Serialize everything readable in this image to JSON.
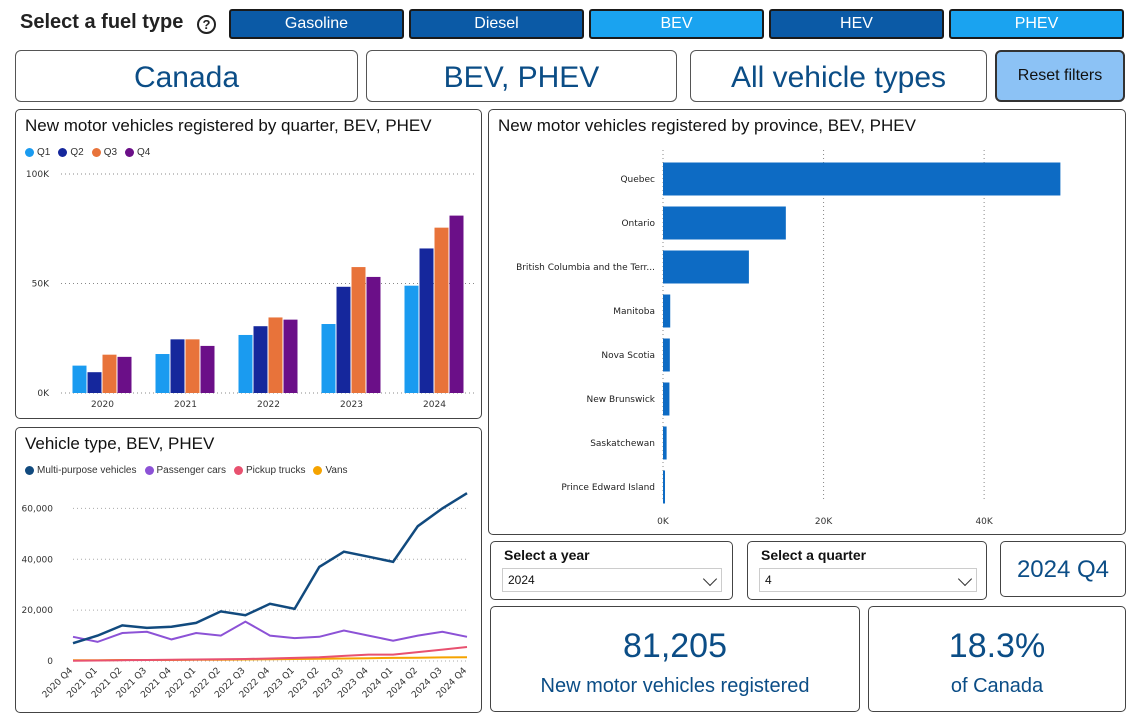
{
  "fuel": {
    "label": "Select a fuel type",
    "buttons": [
      "Gasoline",
      "Diesel",
      "BEV",
      "HEV",
      "PHEV"
    ]
  },
  "filters": {
    "region": "Canada",
    "fuel": "BEV, PHEV",
    "vehicle": "All vehicle types",
    "reset_label": "Reset filters"
  },
  "colors": {
    "dark_button": "#0b5aa6",
    "light_button": "#1aa3f0",
    "kpi_text": "#0b4d86",
    "province_bar": "#0d6bc4"
  },
  "quarter_panel": {
    "title": "New motor vehicles registered by quarter, BEV, PHEV",
    "legend": [
      {
        "name": "Q1",
        "color": "#1a9bf0"
      },
      {
        "name": "Q2",
        "color": "#15279c"
      },
      {
        "name": "Q3",
        "color": "#e8733a"
      },
      {
        "name": "Q4",
        "color": "#6b0f88"
      }
    ]
  },
  "province_panel": {
    "title": "New motor vehicles registered by province, BEV, PHEV"
  },
  "vehicle_panel": {
    "title": "Vehicle type, BEV, PHEV",
    "legend": [
      {
        "name": "Multi-purpose vehicles",
        "color": "#114a7e"
      },
      {
        "name": "Passenger cars",
        "color": "#8c52d6"
      },
      {
        "name": "Pickup trucks",
        "color": "#e8516f"
      },
      {
        "name": "Vans",
        "color": "#f5a300"
      }
    ]
  },
  "year_slicer": {
    "title": "Select a year",
    "value": "2024"
  },
  "quarter_slicer": {
    "title": "Select a quarter",
    "value": "4"
  },
  "period": "2024 Q4",
  "kpi_count": {
    "value": "81,205",
    "label": "New motor vehicles registered"
  },
  "kpi_share": {
    "value": "18.3%",
    "label": "of Canada"
  },
  "chart_data": [
    {
      "type": "bar",
      "title": "New motor vehicles registered by quarter, BEV, PHEV",
      "categories": [
        "2020",
        "2021",
        "2022",
        "2023",
        "2024"
      ],
      "series": [
        {
          "name": "Q1",
          "values": [
            12500,
            17800,
            26500,
            31500,
            49000
          ]
        },
        {
          "name": "Q2",
          "values": [
            9500,
            24500,
            30500,
            48500,
            66000
          ]
        },
        {
          "name": "Q3",
          "values": [
            17500,
            24500,
            34500,
            57500,
            75500
          ]
        },
        {
          "name": "Q4",
          "values": [
            16500,
            21500,
            33500,
            53000,
            81000
          ]
        }
      ],
      "ylim": [
        0,
        100000
      ],
      "yticks": [
        "0K",
        "50K",
        "100K"
      ],
      "grid": true,
      "legend": "top-left"
    },
    {
      "type": "bar",
      "orientation": "horizontal",
      "title": "New motor vehicles registered by province, BEV, PHEV",
      "categories": [
        "Quebec",
        "Ontario",
        "British Columbia and the Terr...",
        "Manitoba",
        "Nova Scotia",
        "New Brunswick",
        "Saskatchewan",
        "Prince Edward Island"
      ],
      "values": [
        49500,
        15300,
        10700,
        900,
        850,
        800,
        450,
        250
      ],
      "xlim": [
        0,
        50000
      ],
      "xticks": [
        "0K",
        "20K",
        "40K"
      ],
      "grid": true
    },
    {
      "type": "line",
      "title": "Vehicle type, BEV, PHEV",
      "x": [
        "2020 Q4",
        "2021 Q1",
        "2021 Q2",
        "2021 Q3",
        "2021 Q4",
        "2022 Q1",
        "2022 Q2",
        "2022 Q3",
        "2022 Q4",
        "2023 Q1",
        "2023 Q2",
        "2023 Q3",
        "2023 Q4",
        "2024 Q1",
        "2024 Q2",
        "2024 Q3",
        "2024 Q4"
      ],
      "series": [
        {
          "name": "Multi-purpose vehicles",
          "values": [
            7000,
            10000,
            14000,
            13000,
            13500,
            15000,
            19500,
            18000,
            22500,
            20500,
            37000,
            43000,
            41000,
            39000,
            53000,
            60000,
            66000
          ]
        },
        {
          "name": "Passenger cars",
          "values": [
            9500,
            7500,
            11000,
            11500,
            8500,
            11000,
            10000,
            15500,
            10000,
            9000,
            9500,
            12000,
            10000,
            8000,
            10000,
            11500,
            9500
          ]
        },
        {
          "name": "Pickup trucks",
          "values": [
            100,
            200,
            300,
            400,
            500,
            600,
            700,
            800,
            1000,
            1200,
            1500,
            2000,
            2500,
            2500,
            3500,
            4500,
            5500
          ]
        },
        {
          "name": "Vans",
          "values": [
            300,
            300,
            400,
            400,
            400,
            500,
            500,
            600,
            700,
            800,
            900,
            1000,
            1100,
            1200,
            1300,
            1400,
            1500
          ]
        }
      ],
      "ylim": [
        0,
        70000
      ],
      "yticks": [
        "0",
        "20,000",
        "40,000",
        "60,000"
      ],
      "legend": "top-left"
    }
  ]
}
